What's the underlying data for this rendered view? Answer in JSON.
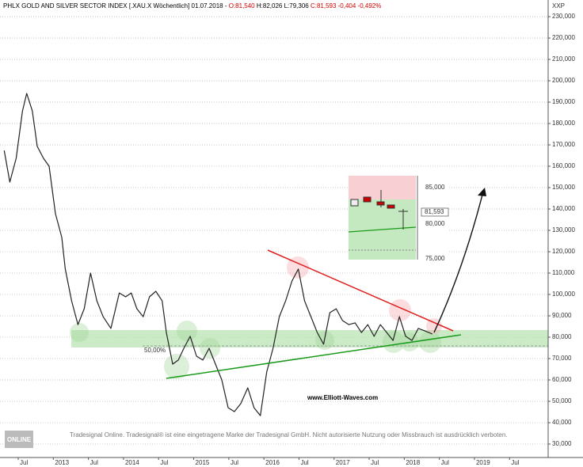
{
  "chart_data": {
    "type": "line",
    "title": "PHLX GOLD AND SILVER SECTOR INDEX [.XAU.X Wöchentlich] 01.07.2018 -",
    "ohlc": [
      "O:81,540",
      "H:82,026",
      "L:79,306",
      "C:81,593 -0,404 -0,492%"
    ],
    "y_axis_label": "XXP",
    "color": "#222222",
    "grid": true,
    "xlim": [
      2012.24,
      2020.05
    ],
    "ylim": [
      23700,
      237800
    ],
    "xticks": [
      {
        "value": 2012.5,
        "label": "Jul"
      },
      2013,
      {
        "value": 2013.5,
        "label": "Jul"
      },
      2014,
      {
        "value": 2014.5,
        "label": "Jul"
      },
      2015,
      {
        "value": 2015.5,
        "label": "Jul"
      },
      2016,
      {
        "value": 2016.5,
        "label": "Jul"
      },
      2017,
      {
        "value": 2017.5,
        "label": "Jul"
      },
      2018,
      {
        "value": 2018.5,
        "label": "Jul"
      },
      2019,
      {
        "value": 2019.5,
        "label": "Jul"
      }
    ],
    "yticks": [
      {
        "value": 30000,
        "label": "30,000"
      },
      {
        "value": 40000,
        "label": "40,000"
      },
      {
        "value": 50000,
        "label": "50,000"
      },
      {
        "value": 60000,
        "label": "60,000"
      },
      {
        "value": 70000,
        "label": "70,000"
      },
      {
        "value": 80000,
        "label": "80,000"
      },
      {
        "value": 90000,
        "label": "90,000"
      },
      {
        "value": 100000,
        "label": "100,000"
      },
      {
        "value": 110000,
        "label": "110,000"
      },
      {
        "value": 120000,
        "label": "120,000"
      },
      {
        "value": 130000,
        "label": "130,000"
      },
      {
        "value": 140000,
        "label": "140,000"
      },
      {
        "value": 150000,
        "label": "150,000"
      },
      {
        "value": 160000,
        "label": "160,000"
      },
      {
        "value": 170000,
        "label": "170,000"
      },
      {
        "value": 180000,
        "label": "180,000"
      },
      {
        "value": 190000,
        "label": "190,000"
      },
      {
        "value": 200000,
        "label": "200,000"
      },
      {
        "value": 210000,
        "label": "210,000"
      },
      {
        "value": 220000,
        "label": "220,000"
      },
      {
        "value": 230000,
        "label": "230,000"
      }
    ],
    "x": [
      2012.3,
      2012.38,
      2012.47,
      2012.56,
      2012.62,
      2012.7,
      2012.77,
      2012.86,
      2012.94,
      2013.03,
      2013.12,
      2013.17,
      2013.26,
      2013.35,
      2013.44,
      2013.53,
      2013.62,
      2013.71,
      2013.82,
      2013.94,
      2014.03,
      2014.11,
      2014.19,
      2014.28,
      2014.37,
      2014.46,
      2014.55,
      2014.61,
      2014.7,
      2014.78,
      2014.86,
      2014.95,
      2015.04,
      2015.13,
      2015.22,
      2015.31,
      2015.4,
      2015.49,
      2015.58,
      2015.67,
      2015.77,
      2015.86,
      2015.95,
      2016.04,
      2016.13,
      2016.22,
      2016.31,
      2016.4,
      2016.49,
      2016.58,
      2016.67,
      2016.76,
      2016.85,
      2016.94,
      2017.03,
      2017.12,
      2017.21,
      2017.3,
      2017.39,
      2017.48,
      2017.57,
      2017.66,
      2017.75,
      2017.84,
      2017.93,
      2018.02,
      2018.11,
      2018.2,
      2018.29,
      2018.4
    ],
    "values": [
      167400,
      152600,
      163700,
      185900,
      194100,
      185900,
      169300,
      163700,
      160000,
      137800,
      126700,
      111900,
      97000,
      85900,
      93300,
      110000,
      97000,
      89600,
      84100,
      100700,
      98900,
      100700,
      93300,
      89600,
      98900,
      101500,
      97000,
      82200,
      67400,
      69300,
      74800,
      80400,
      71100,
      69300,
      74800,
      67400,
      60000,
      47000,
      45200,
      48900,
      56300,
      47000,
      43300,
      63700,
      74800,
      89600,
      97000,
      106300,
      111900,
      97000,
      89600,
      82200,
      76700,
      91500,
      93300,
      87800,
      85900,
      86700,
      82200,
      85900,
      80400,
      85900,
      82200,
      78500,
      89600,
      80400,
      78500,
      84100,
      83000,
      81500
    ],
    "retracement_label": "50,00%",
    "watermark": "www.Elliott-Waves.com",
    "footer": "Tradesignal Online. Tradesignal® ist eine eingetragene Marke der Tradesignal GmbH. Nicht autorisierte Nutzung oder Missbrauch ist ausdrücklich verboten.",
    "logo": "ONLINE",
    "inset_labels": [
      "85,000",
      "81,593",
      "80,000",
      "75,000"
    ]
  }
}
